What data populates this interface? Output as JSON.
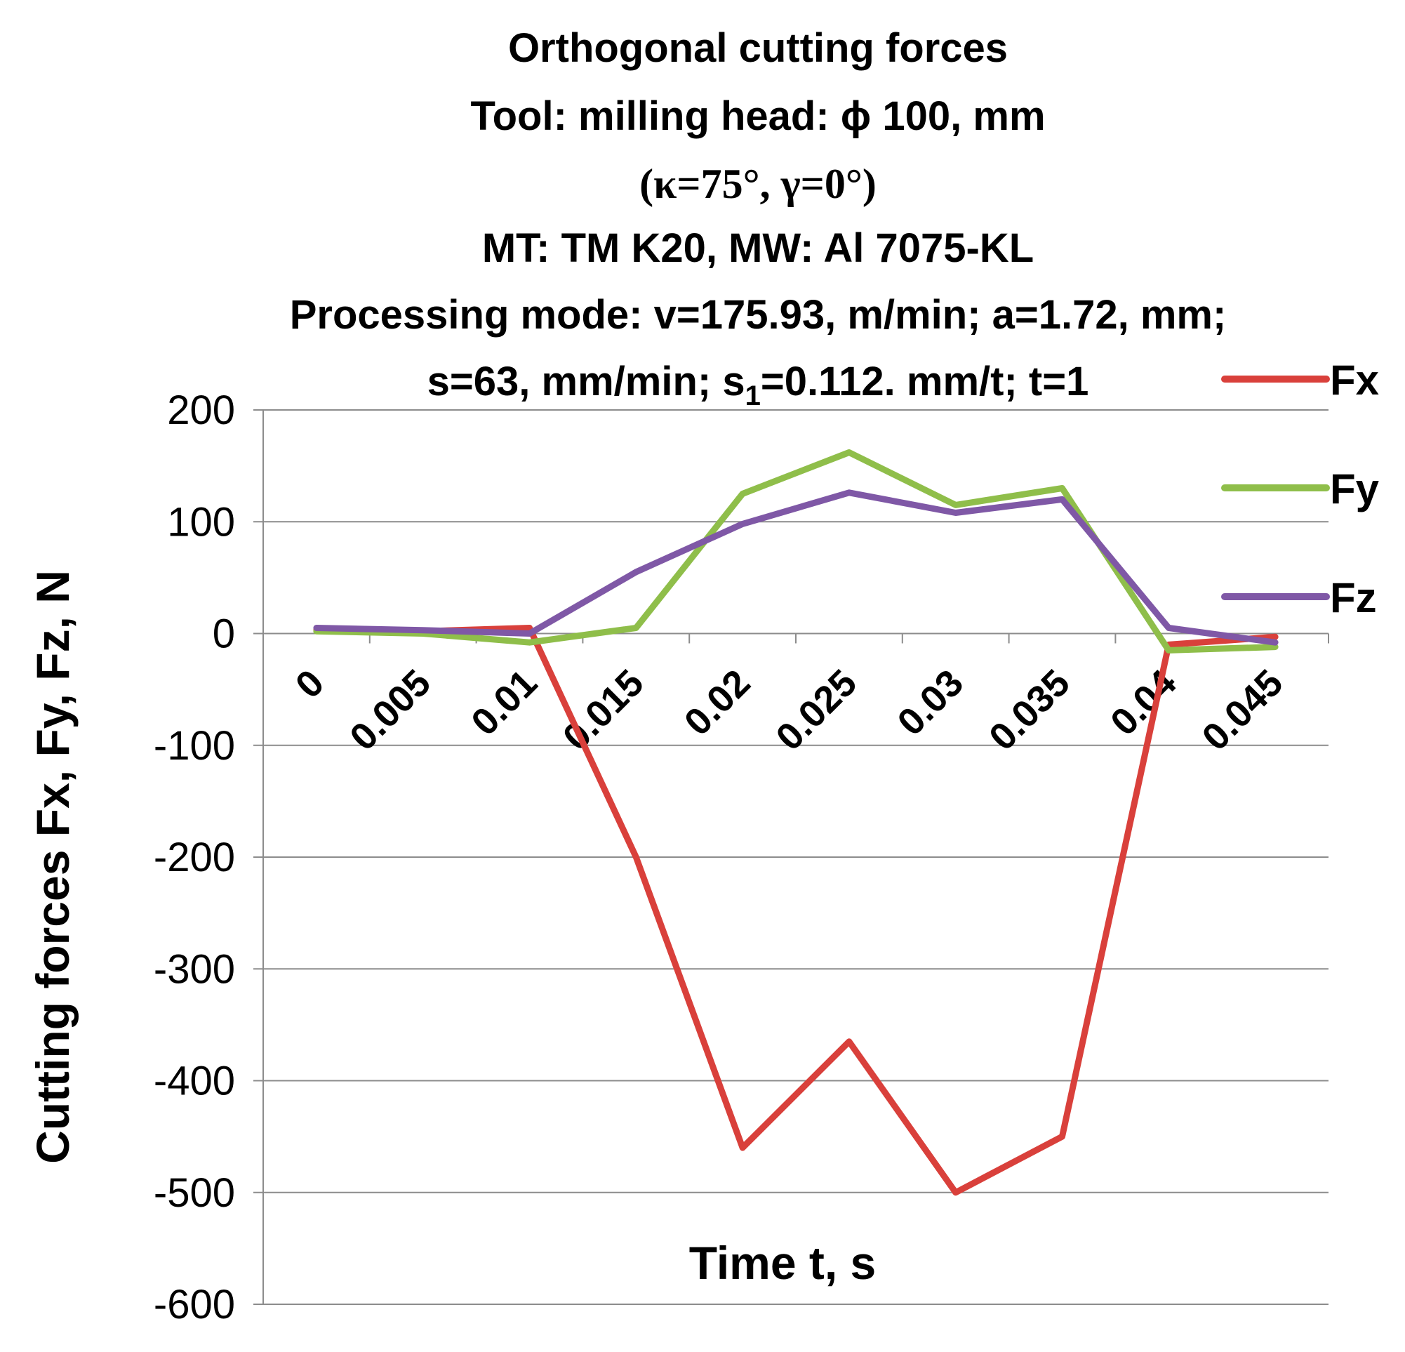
{
  "chart_data": {
    "type": "line",
    "title_lines": [
      "Orthogonal cutting forces",
      "Tool: milling head: ϕ 100, mm",
      "(κ=75°, γ=0°)",
      "MT: TM K20, MW: Al 7075-KL",
      "Processing mode: v=175.93, m/min; a=1.72, mm;",
      "s=63, mm/min; s1=0.112. mm/t; t=1"
    ],
    "title_line6_parts": {
      "pre": "s=63, mm/min; s",
      "sub": "1",
      "post": "=0.112. mm/t; t=1"
    },
    "xlabel": "Time t, s",
    "ylabel": "Cutting forces Fx,  Fy,  Fz, N",
    "x": [
      0,
      0.005,
      0.01,
      0.015,
      0.02,
      0.025,
      0.03,
      0.035,
      0.04,
      0.045
    ],
    "x_tick_labels": [
      "0",
      "0.005",
      "0.01",
      "0.015",
      "0.02",
      "0.025",
      "0.03",
      "0.035",
      "0.04",
      "0.045"
    ],
    "ylim": [
      -600,
      200
    ],
    "y_ticks": [
      200,
      100,
      0,
      -100,
      -200,
      -300,
      -400,
      -500,
      -600
    ],
    "y_tick_labels": [
      "200",
      "100",
      "0",
      "-100",
      "-200",
      "-300",
      "-400",
      "-500",
      "-600"
    ],
    "grid": "horizontal",
    "legend_position": "right",
    "series": [
      {
        "name": "Fx",
        "color": "#d9403b",
        "values": [
          3,
          2,
          5,
          -200,
          -460,
          -365,
          -500,
          -450,
          -10,
          -3
        ]
      },
      {
        "name": "Fy",
        "color": "#8fbe4a",
        "values": [
          2,
          0,
          -8,
          5,
          125,
          162,
          115,
          130,
          -15,
          -12
        ]
      },
      {
        "name": "Fz",
        "color": "#7f58a6",
        "values": [
          5,
          3,
          0,
          55,
          98,
          126,
          108,
          120,
          5,
          -8
        ]
      }
    ]
  }
}
